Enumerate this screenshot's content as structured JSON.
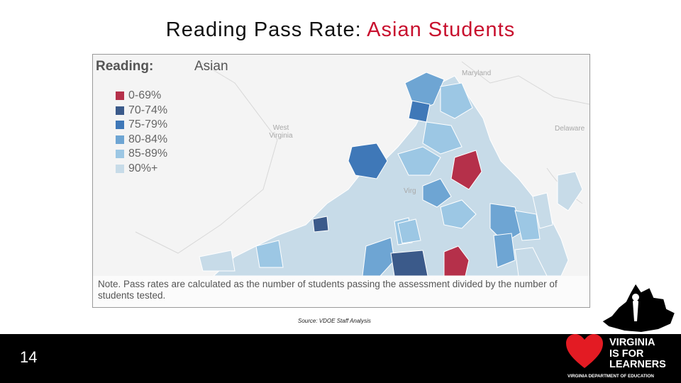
{
  "slide": {
    "title_main": "Reading Pass Rate:",
    "title_accent": "Asian Students",
    "page_number": "14",
    "source": "Source: VDOE Staff Analysis"
  },
  "map": {
    "legend_title": "Reading:",
    "legend_subtitle": "Asian",
    "legend": [
      {
        "label": "0-69%",
        "color": "#b5304a"
      },
      {
        "label": "70-74%",
        "color": "#3b5a8a"
      },
      {
        "label": "75-79%",
        "color": "#3f78b8"
      },
      {
        "label": "80-84%",
        "color": "#6ea5d3"
      },
      {
        "label": "85-89%",
        "color": "#9cc7e4"
      },
      {
        "label": "90%+",
        "color": "#c7dbe8"
      }
    ],
    "place_labels": {
      "maryland": "Maryland",
      "west_virginia": "West Virginia",
      "delaware": "Delaware",
      "virginia": "Virg"
    },
    "note": "Note. Pass rates are calculated as the number of students passing the assessment divided by the number of students tested."
  },
  "logo": {
    "line1": "VIRGINIA",
    "line2": "IS FOR",
    "line3": "LEARNERS",
    "department": "VIRGINIA DEPARTMENT OF EDUCATION",
    "heart_color": "#e31b23"
  }
}
